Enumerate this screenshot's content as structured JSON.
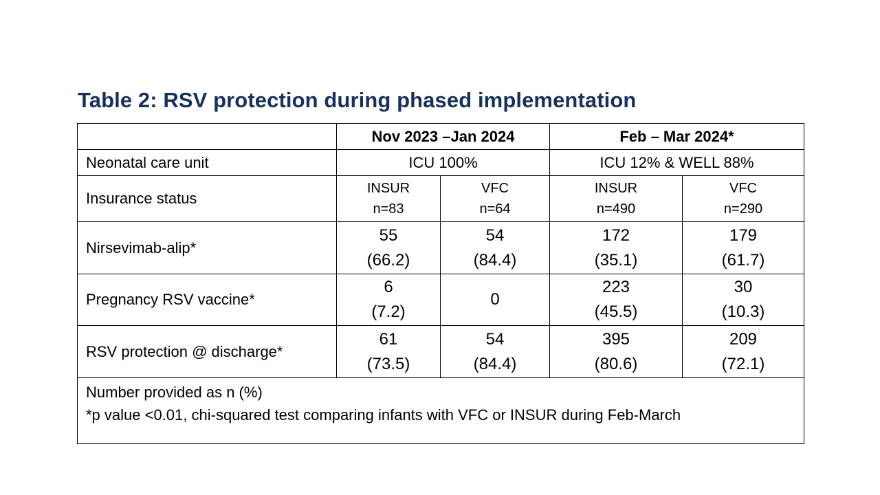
{
  "title": "Table 2: RSV protection during phased implementation",
  "periods": [
    "Nov 2023 –Jan 2024",
    "Feb – Mar 2024*"
  ],
  "care_unit": {
    "label": "Neonatal care unit",
    "values": [
      "ICU 100%",
      "ICU 12% & WELL 88%"
    ]
  },
  "insurance": {
    "label": "Insurance status",
    "groups": [
      {
        "name": "INSUR",
        "n": "n=83"
      },
      {
        "name": "VFC",
        "n": "n=64"
      },
      {
        "name": "INSUR",
        "n": "n=490"
      },
      {
        "name": "VFC",
        "n": "n=290"
      }
    ]
  },
  "rows": [
    {
      "label": "Nirsevimab-alip*",
      "cells": [
        {
          "n": "55",
          "pct": "(66.2)"
        },
        {
          "n": "54",
          "pct": "(84.4)"
        },
        {
          "n": "172",
          "pct": "(35.1)"
        },
        {
          "n": "179",
          "pct": "(61.7)"
        }
      ]
    },
    {
      "label": "Pregnancy RSV vaccine*",
      "cells": [
        {
          "n": "6",
          "pct": "(7.2)"
        },
        {
          "n": "0",
          "pct": ""
        },
        {
          "n": "223",
          "pct": "(45.5)"
        },
        {
          "n": "30",
          "pct": "(10.3)"
        }
      ]
    },
    {
      "label": "RSV protection @ discharge*",
      "cells": [
        {
          "n": "61",
          "pct": "(73.5)"
        },
        {
          "n": "54",
          "pct": "(84.4)"
        },
        {
          "n": "395",
          "pct": "(80.6)"
        },
        {
          "n": "209",
          "pct": "(72.1)"
        }
      ]
    }
  ],
  "footnotes": [
    "Number provided as n (%)",
    "*p value <0.01, chi-squared test comparing infants with VFC or INSUR during Feb-March"
  ],
  "colors": {
    "title": "#17315c",
    "border": "#000000"
  }
}
